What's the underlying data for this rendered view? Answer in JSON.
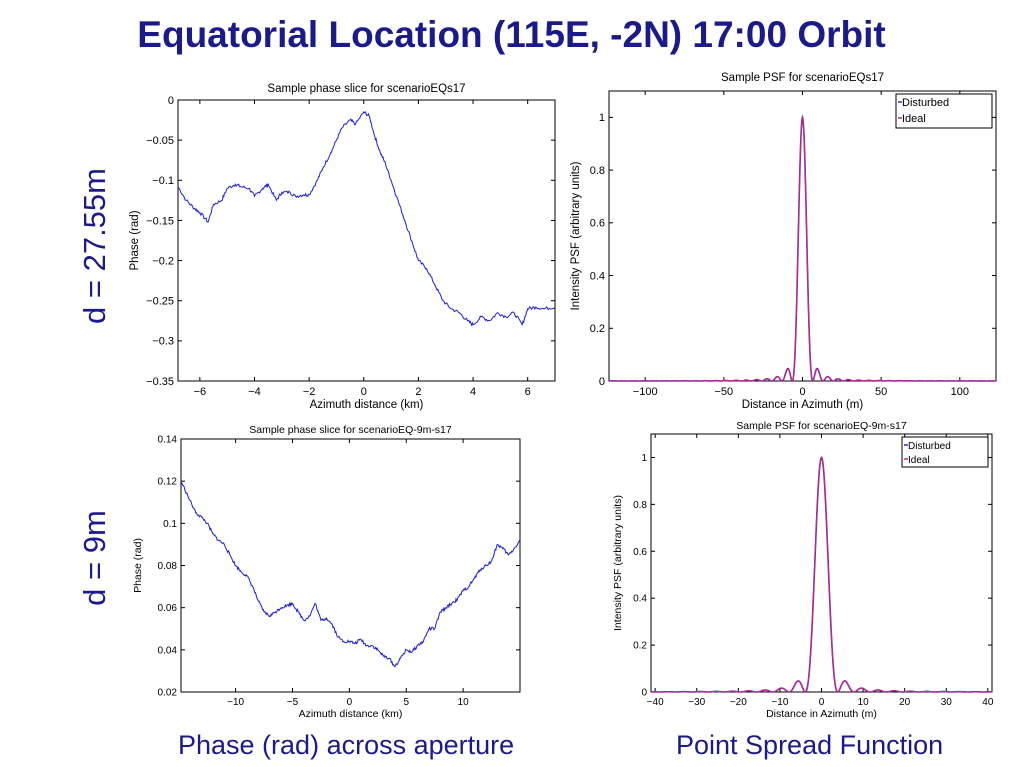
{
  "slide": {
    "title": "Equatorial Location (115E, -2N) 17:00 Orbit",
    "row_labels": [
      "d  = 27.55m",
      "d  = 9m"
    ],
    "captions": [
      "Phase (rad) across aperture",
      "Point Spread Function"
    ]
  },
  "chart_data": [
    {
      "type": "line",
      "title": "Sample phase slice for scenarioEQs17",
      "xlabel": "Azimuth distance (km)",
      "ylabel": "Phase (rad)",
      "xlim": [
        -6.8,
        7
      ],
      "ylim": [
        -0.35,
        0
      ],
      "xticks": [
        -6,
        -4,
        -2,
        0,
        2,
        4,
        6
      ],
      "yticks": [
        0,
        -0.05,
        -0.1,
        -0.15,
        -0.2,
        -0.25,
        -0.3,
        -0.35
      ],
      "ytick_labels": [
        "0",
        "−0.05",
        "−0.1",
        "−0.15",
        "−0.2",
        "−0.25",
        "−0.3",
        "−0.35"
      ],
      "xtick_labels": [
        "−6",
        "−4",
        "−2",
        "0",
        "2",
        "4",
        "6"
      ],
      "color": "#1f1fd0",
      "grid": false,
      "series": [
        {
          "x": [
            -6.8,
            -6.5,
            -6.2,
            -6.0,
            -5.7,
            -5.5,
            -5.2,
            -5.0,
            -4.7,
            -4.5,
            -4.2,
            -4.0,
            -3.7,
            -3.5,
            -3.2,
            -3.0,
            -2.7,
            -2.5,
            -2.2,
            -2.0,
            -1.7,
            -1.5,
            -1.2,
            -1.0,
            -0.8,
            -0.5,
            -0.3,
            0.0,
            0.2,
            0.4,
            0.6,
            0.8,
            1.0,
            1.2,
            1.5,
            1.8,
            2.0,
            2.3,
            2.6,
            2.9,
            3.2,
            3.5,
            3.8,
            4.0,
            4.3,
            4.6,
            4.9,
            5.2,
            5.5,
            5.8,
            6.0,
            6.3,
            6.6,
            7.0
          ],
          "y": [
            -0.108,
            -0.125,
            -0.135,
            -0.14,
            -0.152,
            -0.13,
            -0.125,
            -0.11,
            -0.105,
            -0.108,
            -0.11,
            -0.12,
            -0.11,
            -0.105,
            -0.125,
            -0.115,
            -0.115,
            -0.12,
            -0.118,
            -0.118,
            -0.1,
            -0.085,
            -0.065,
            -0.05,
            -0.035,
            -0.025,
            -0.03,
            -0.015,
            -0.02,
            -0.045,
            -0.065,
            -0.08,
            -0.1,
            -0.12,
            -0.15,
            -0.18,
            -0.2,
            -0.21,
            -0.23,
            -0.25,
            -0.26,
            -0.265,
            -0.275,
            -0.28,
            -0.27,
            -0.275,
            -0.265,
            -0.27,
            -0.265,
            -0.28,
            -0.26,
            -0.258,
            -0.26,
            -0.258
          ]
        }
      ]
    },
    {
      "type": "line",
      "title": "Sample PSF for scenarioEQs17",
      "xlabel": "Distance in Azimuth (m)",
      "ylabel": "Intensity PSF (arbitrary units)",
      "xlim": [
        -123,
        123
      ],
      "ylim": [
        0,
        1.1
      ],
      "xticks": [
        -100,
        -50,
        0,
        50,
        100
      ],
      "yticks": [
        0,
        0.2,
        0.4,
        0.6,
        0.8,
        1
      ],
      "ytick_labels": [
        "0",
        "0.2",
        "0.4",
        "0.6",
        "0.8",
        "1"
      ],
      "xtick_labels": [
        "−100",
        "−50",
        "0",
        "50",
        "100"
      ],
      "sinc_width": 6.5,
      "x_peak": 0,
      "legend": "top-right",
      "grid": false,
      "series": [
        {
          "name": "Disturbed",
          "color": "#2a2ad8"
        },
        {
          "name": "Ideal",
          "color": "#d0267a"
        }
      ]
    },
    {
      "type": "line",
      "title": "Sample phase slice for scenarioEQ-9m-s17",
      "xlabel": "Azimuth distance (km)",
      "ylabel": "Phase (rad)",
      "xlim": [
        -14.8,
        15
      ],
      "ylim": [
        0.02,
        0.14
      ],
      "xticks": [
        -10,
        -5,
        0,
        5,
        10
      ],
      "yticks": [
        0.02,
        0.04,
        0.06,
        0.08,
        0.1,
        0.12,
        0.14
      ],
      "ytick_labels": [
        "0.02",
        "0.04",
        "0.06",
        "0.08",
        "0.1",
        "0.12",
        "0.14"
      ],
      "xtick_labels": [
        "−10",
        "−5",
        "0",
        "5",
        "10"
      ],
      "color": "#1f1fd0",
      "grid": false,
      "series": [
        {
          "x": [
            -14.8,
            -14.2,
            -13.5,
            -13.0,
            -12.5,
            -12.0,
            -11.5,
            -11.0,
            -10.5,
            -10.0,
            -9.5,
            -9.0,
            -8.5,
            -8.0,
            -7.5,
            -7.0,
            -6.5,
            -6.0,
            -5.5,
            -5.0,
            -4.5,
            -4.0,
            -3.5,
            -3.0,
            -2.5,
            -2.0,
            -1.5,
            -1.0,
            -0.5,
            0.0,
            0.5,
            1.0,
            1.5,
            2.0,
            2.5,
            3.0,
            3.5,
            4.0,
            4.5,
            5.0,
            5.5,
            6.0,
            6.5,
            7.0,
            7.5,
            8.0,
            8.5,
            9.0,
            9.5,
            10.0,
            10.5,
            11.0,
            11.5,
            12.0,
            12.5,
            13.0,
            13.5,
            14.0,
            14.5,
            15.0
          ],
          "y": [
            0.12,
            0.113,
            0.105,
            0.103,
            0.1,
            0.095,
            0.092,
            0.09,
            0.085,
            0.08,
            0.077,
            0.075,
            0.07,
            0.063,
            0.058,
            0.056,
            0.058,
            0.06,
            0.061,
            0.062,
            0.058,
            0.054,
            0.056,
            0.062,
            0.054,
            0.055,
            0.052,
            0.046,
            0.044,
            0.044,
            0.043,
            0.045,
            0.042,
            0.042,
            0.04,
            0.037,
            0.036,
            0.032,
            0.036,
            0.04,
            0.039,
            0.042,
            0.044,
            0.05,
            0.05,
            0.058,
            0.06,
            0.062,
            0.064,
            0.068,
            0.07,
            0.074,
            0.078,
            0.08,
            0.082,
            0.09,
            0.088,
            0.085,
            0.088,
            0.092
          ]
        }
      ]
    },
    {
      "type": "line",
      "title": "Sample PSF for scenarioEQ-9m-s17",
      "xlabel": "Distance in Azimuth (m)",
      "ylabel": "Intensity PSF (arbitrary units)",
      "xlim": [
        -41,
        41
      ],
      "ylim": [
        0,
        1.1
      ],
      "xticks": [
        -40,
        -30,
        -20,
        -10,
        0,
        10,
        20,
        30,
        40
      ],
      "yticks": [
        0,
        0.2,
        0.4,
        0.6,
        0.8,
        1
      ],
      "ytick_labels": [
        "0",
        "0.2",
        "0.4",
        "0.6",
        "0.8",
        "1"
      ],
      "xtick_labels": [
        "−40",
        "−30",
        "−20",
        "−10",
        "0",
        "10",
        "20",
        "30",
        "40"
      ],
      "sinc_width": 3.9,
      "x_peak": 0,
      "legend": "top-right",
      "grid": false,
      "series": [
        {
          "name": "Disturbed",
          "color": "#2a2ad8"
        },
        {
          "name": "Ideal",
          "color": "#d0267a"
        }
      ]
    }
  ]
}
